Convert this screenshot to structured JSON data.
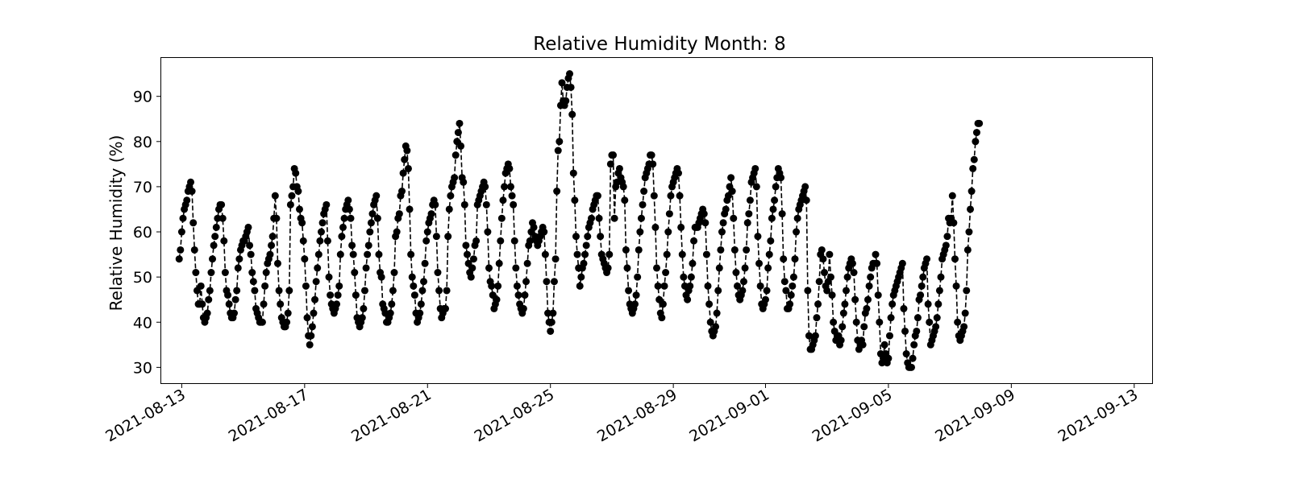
{
  "chart_data": {
    "type": "line",
    "title": "Relative Humidity Month: 8",
    "ylabel": "Relative Humidity (%)",
    "xlabel": "",
    "x_range": [
      "2021-08-12T08:00",
      "2021-09-13T14:00"
    ],
    "ylim": [
      26.5,
      98.5
    ],
    "y_ticks": [
      30,
      40,
      50,
      60,
      70,
      80,
      90
    ],
    "x_ticks": [
      "2021-08-13",
      "2021-08-17",
      "2021-08-21",
      "2021-08-25",
      "2021-08-29",
      "2021-09-01",
      "2021-09-05",
      "2021-09-09",
      "2021-09-13"
    ],
    "line_style": "dashed",
    "marker": "circle",
    "color": "#000000",
    "grid": false,
    "series": [
      {
        "x_start": "2021-08-12T22:00",
        "interval_hours": 1,
        "values": [
          54,
          56,
          60,
          63,
          65,
          66,
          67,
          69,
          70,
          71,
          69,
          62,
          56,
          51,
          47,
          44,
          44,
          48,
          44,
          41,
          40,
          41,
          42,
          45,
          47,
          51,
          54,
          57,
          59,
          61,
          63,
          65,
          66,
          66,
          63,
          58,
          51,
          47,
          46,
          44,
          42,
          41,
          41,
          42,
          45,
          47,
          52,
          54,
          56,
          57,
          58,
          58,
          59,
          60,
          61,
          57,
          55,
          51,
          49,
          47,
          43,
          42,
          41,
          40,
          40,
          40,
          44,
          48,
          51,
          53,
          54,
          55,
          57,
          59,
          63,
          68,
          63,
          53,
          47,
          44,
          41,
          40,
          39,
          39,
          40,
          42,
          47,
          66,
          68,
          70,
          74,
          73,
          70,
          69,
          65,
          63,
          62,
          58,
          54,
          48,
          41,
          37,
          35,
          37,
          39,
          42,
          45,
          49,
          52,
          55,
          58,
          60,
          62,
          64,
          65,
          66,
          58,
          50,
          46,
          44,
          43,
          42,
          43,
          44,
          46,
          48,
          55,
          59,
          61,
          63,
          65,
          66,
          67,
          65,
          63,
          57,
          55,
          51,
          46,
          41,
          40,
          39,
          40,
          41,
          43,
          47,
          52,
          55,
          57,
          60,
          62,
          64,
          66,
          67,
          68,
          63,
          55,
          51,
          50,
          44,
          43,
          42,
          40,
          40,
          41,
          42,
          44,
          47,
          51,
          59,
          60,
          63,
          64,
          68,
          69,
          73,
          76,
          79,
          78,
          74,
          65,
          55,
          50,
          48,
          46,
          42,
          40,
          41,
          42,
          44,
          47,
          49,
          53,
          58,
          60,
          62,
          63,
          64,
          66,
          67,
          66,
          59,
          51,
          47,
          43,
          41,
          42,
          43,
          43,
          47,
          59,
          65,
          68,
          70,
          71,
          72,
          77,
          80,
          82,
          84,
          79,
          72,
          71,
          66,
          57,
          55,
          53,
          51,
          50,
          52,
          54,
          57,
          58,
          66,
          67,
          68,
          69,
          70,
          71,
          70,
          66,
          60,
          52,
          49,
          48,
          46,
          43,
          44,
          45,
          48,
          53,
          58,
          63,
          67,
          70,
          73,
          74,
          75,
          74,
          70,
          68,
          66,
          58,
          52,
          48,
          46,
          44,
          43,
          42,
          43,
          46,
          49,
          53,
          57,
          58,
          60,
          62,
          61,
          59,
          58,
          57,
          58,
          59,
          60,
          61,
          60,
          55,
          49,
          42,
          40,
          38,
          40,
          42,
          49,
          54,
          69,
          78,
          80,
          88,
          93,
          89,
          88,
          89,
          92,
          94,
          95,
          92,
          86,
          73,
          67,
          59,
          55,
          52,
          48,
          50,
          52,
          53,
          55,
          57,
          59,
          61,
          62,
          63,
          65,
          66,
          67,
          68,
          68,
          63,
          59,
          55,
          54,
          53,
          52,
          51,
          52,
          55,
          75,
          77,
          77,
          63,
          70,
          71,
          73,
          74,
          72,
          71,
          70,
          67,
          56,
          52,
          47,
          44,
          43,
          42,
          43,
          44,
          46,
          50,
          56,
          60,
          63,
          66,
          69,
          72,
          73,
          74,
          75,
          77,
          77,
          75,
          68,
          61,
          52,
          48,
          45,
          42,
          41,
          44,
          48,
          51,
          55,
          60,
          64,
          68,
          70,
          71,
          72,
          73,
          74,
          73,
          68,
          61,
          55,
          50,
          48,
          46,
          45,
          47,
          48,
          50,
          53,
          58,
          61,
          61,
          61,
          62,
          63,
          64,
          65,
          64,
          62,
          55,
          48,
          44,
          40,
          38,
          37,
          38,
          39,
          42,
          47,
          52,
          56,
          60,
          62,
          64,
          65,
          67,
          68,
          70,
          72,
          69,
          63,
          56,
          51,
          48,
          46,
          45,
          46,
          47,
          49,
          52,
          56,
          62,
          64,
          67,
          71,
          72,
          73,
          74,
          70,
          59,
          53,
          48,
          44,
          43,
          44,
          45,
          47,
          52,
          55,
          58,
          63,
          65,
          67,
          70,
          72,
          74,
          73,
          72,
          64,
          54,
          49,
          47,
          43,
          43,
          44,
          46,
          48,
          50,
          54,
          60,
          63,
          65,
          66,
          67,
          68,
          69,
          70,
          67,
          47,
          37,
          34,
          34,
          35,
          36,
          37,
          41,
          44,
          49,
          55,
          56,
          54,
          51,
          48,
          47,
          49,
          55,
          50,
          46,
          40,
          38,
          36,
          37,
          37,
          35,
          36,
          39,
          42,
          44,
          47,
          50,
          52,
          53,
          54,
          53,
          51,
          45,
          40,
          36,
          34,
          35,
          36,
          35,
          39,
          42,
          43,
          45,
          48,
          50,
          52,
          53,
          53,
          55,
          53,
          46,
          40,
          33,
          31,
          32,
          35,
          33,
          31,
          32,
          37,
          41,
          44,
          46,
          47,
          48,
          49,
          50,
          51,
          52,
          53,
          43,
          38,
          33,
          31,
          30,
          30,
          30,
          32,
          35,
          37,
          38,
          41,
          45,
          46,
          48,
          50,
          52,
          53,
          54,
          44,
          40,
          35,
          36,
          37,
          38,
          39,
          41,
          44,
          47,
          50,
          54,
          55,
          56,
          57,
          59,
          63,
          62,
          63,
          68,
          62,
          54,
          48,
          40,
          37,
          36,
          37,
          38,
          39,
          42,
          47,
          56,
          60,
          65,
          69,
          74,
          76,
          80,
          82,
          84,
          84
        ]
      }
    ]
  }
}
